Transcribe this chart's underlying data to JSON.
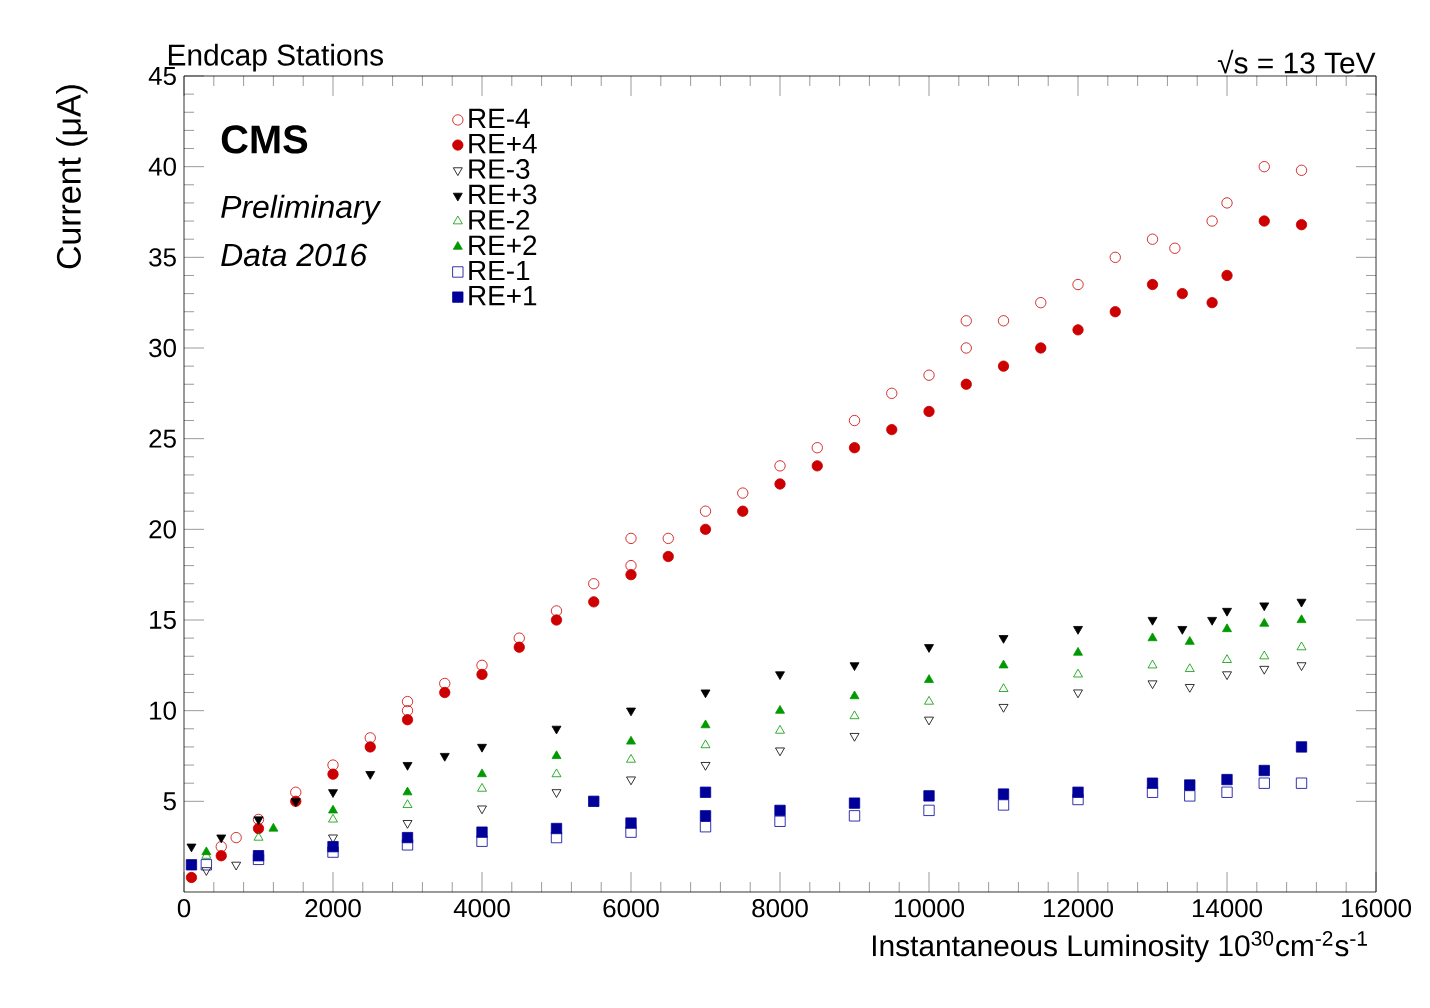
{
  "chart_data": {
    "type": "scatter",
    "title": "Endcap Stations",
    "annotations": [
      "√s = 13 TeV",
      "CMS",
      "*Preliminary*",
      "*Data 2016*"
    ],
    "xlabel": "Instantaneous Luminosity 10$^{30}$cm$^{-2}$s$^{-1}$",
    "ylabel": "Current (μA)",
    "xlim": [
      0,
      16000
    ],
    "xticks": [
      0,
      2000,
      4000,
      6000,
      8000,
      10000,
      12000,
      14000,
      16000
    ],
    "ylim": [
      0,
      45
    ],
    "yticks": [
      5,
      10,
      15,
      20,
      25,
      30,
      35,
      40,
      45
    ],
    "legend": "top left",
    "grid": false,
    "series": [
      {
        "name": "RE-4",
        "color": "#cc0000",
        "marker": "circle open",
        "x": [
          700,
          500,
          1000,
          1500,
          2000,
          2500,
          3000,
          3500,
          4000,
          4500,
          5000,
          5500,
          6000,
          6500,
          7000,
          7500,
          8000,
          8500,
          9000,
          9500,
          10000,
          10500,
          11000,
          11500,
          12000,
          12500,
          13000,
          13300,
          13800,
          14000,
          14500,
          15000,
          3000,
          6000,
          10500
        ],
        "values": [
          3,
          2.5,
          4,
          5.5,
          7,
          8.5,
          10,
          11.5,
          12.5,
          14,
          15.5,
          17,
          18,
          19.5,
          21,
          22,
          23.5,
          24.5,
          26,
          27.5,
          28.5,
          30,
          31.5,
          32.5,
          33.5,
          35,
          36,
          35.5,
          37,
          38,
          40,
          39.8,
          10.5,
          19.5,
          31.5
        ]
      },
      {
        "name": "RE+4",
        "color": "#cc0000",
        "marker": "circle",
        "x": [
          100,
          500,
          1000,
          1500,
          2000,
          2500,
          3000,
          3500,
          4000,
          4500,
          5000,
          5500,
          6000,
          6500,
          7000,
          7500,
          8000,
          8500,
          9000,
          9500,
          10000,
          10500,
          11000,
          11500,
          12000,
          12500,
          13000,
          13400,
          13800,
          14000,
          14500,
          15000
        ],
        "values": [
          0.8,
          2,
          3.5,
          5,
          6.5,
          8,
          9.5,
          11,
          12,
          13.5,
          15,
          16,
          17.5,
          18.5,
          20,
          21,
          22.5,
          23.5,
          24.5,
          25.5,
          26.5,
          28,
          29,
          30,
          31,
          32,
          33.5,
          33,
          32.5,
          34,
          37,
          36.8
        ]
      },
      {
        "name": "RE-3",
        "color": "#000000",
        "marker": "triangle down open",
        "x": [
          300,
          700,
          2000,
          3000,
          4000,
          5000,
          6000,
          7000,
          8000,
          9000,
          10000,
          11000,
          12000,
          13000,
          13500,
          14000,
          14500,
          15000
        ],
        "values": [
          1.2,
          1.5,
          3,
          3.8,
          4.6,
          5.5,
          6.2,
          7,
          7.8,
          8.6,
          9.5,
          10.2,
          11,
          11.5,
          11.3,
          12,
          12.3,
          12.5
        ]
      },
      {
        "name": "RE+3",
        "color": "#000000",
        "marker": "triangle down",
        "x": [
          100,
          500,
          1000,
          1500,
          2000,
          2500,
          3000,
          3500,
          4000,
          5000,
          6000,
          7000,
          8000,
          9000,
          10000,
          11000,
          12000,
          13000,
          13400,
          13800,
          14000,
          14500,
          15000
        ],
        "values": [
          2.5,
          3,
          4,
          5,
          5.5,
          6.5,
          7,
          7.5,
          8,
          9,
          10,
          11,
          12,
          12.5,
          13.5,
          14,
          14.5,
          15,
          14.5,
          15,
          15.5,
          15.8,
          16
        ]
      },
      {
        "name": "RE-2",
        "color": "#009900",
        "marker": "triangle open",
        "x": [
          300,
          1000,
          2000,
          3000,
          4000,
          5000,
          6000,
          7000,
          8000,
          9000,
          10000,
          11000,
          12000,
          13000,
          13500,
          14000,
          14500,
          15000
        ],
        "values": [
          2,
          3,
          4,
          4.8,
          5.7,
          6.5,
          7.3,
          8.1,
          8.9,
          9.7,
          10.5,
          11.2,
          12,
          12.5,
          12.3,
          12.8,
          13,
          13.5
        ]
      },
      {
        "name": "RE+2",
        "color": "#009900",
        "marker": "triangle",
        "x": [
          300,
          1200,
          2000,
          3000,
          4000,
          5000,
          6000,
          7000,
          8000,
          9000,
          10000,
          11000,
          12000,
          13000,
          13500,
          14000,
          14500,
          15000
        ],
        "values": [
          2.2,
          3.5,
          4.5,
          5.5,
          6.5,
          7.5,
          8.3,
          9.2,
          10,
          10.8,
          11.7,
          12.5,
          13.2,
          14,
          13.8,
          14.5,
          14.8,
          15
        ]
      },
      {
        "name": "RE-1",
        "color": "#000099",
        "marker": "square open",
        "x": [
          300,
          1000,
          2000,
          3000,
          4000,
          5000,
          6000,
          7000,
          8000,
          9000,
          10000,
          11000,
          12000,
          13000,
          13500,
          14000,
          14500,
          15000
        ],
        "values": [
          1.5,
          1.8,
          2.2,
          2.6,
          2.8,
          3,
          3.3,
          3.6,
          3.9,
          4.2,
          4.5,
          4.8,
          5.1,
          5.5,
          5.3,
          5.5,
          6,
          6
        ]
      },
      {
        "name": "RE+1",
        "color": "#000099",
        "marker": "square",
        "x": [
          100,
          1000,
          2000,
          3000,
          4000,
          5000,
          6000,
          7000,
          8000,
          9000,
          10000,
          11000,
          12000,
          13000,
          13500,
          14000,
          14500,
          15000,
          5500,
          7000
        ],
        "values": [
          1.5,
          2,
          2.5,
          3,
          3.3,
          3.5,
          3.8,
          4.2,
          4.5,
          4.9,
          5.3,
          5.4,
          5.5,
          6,
          5.9,
          6.2,
          6.7,
          8,
          5,
          5.5
        ]
      }
    ]
  }
}
